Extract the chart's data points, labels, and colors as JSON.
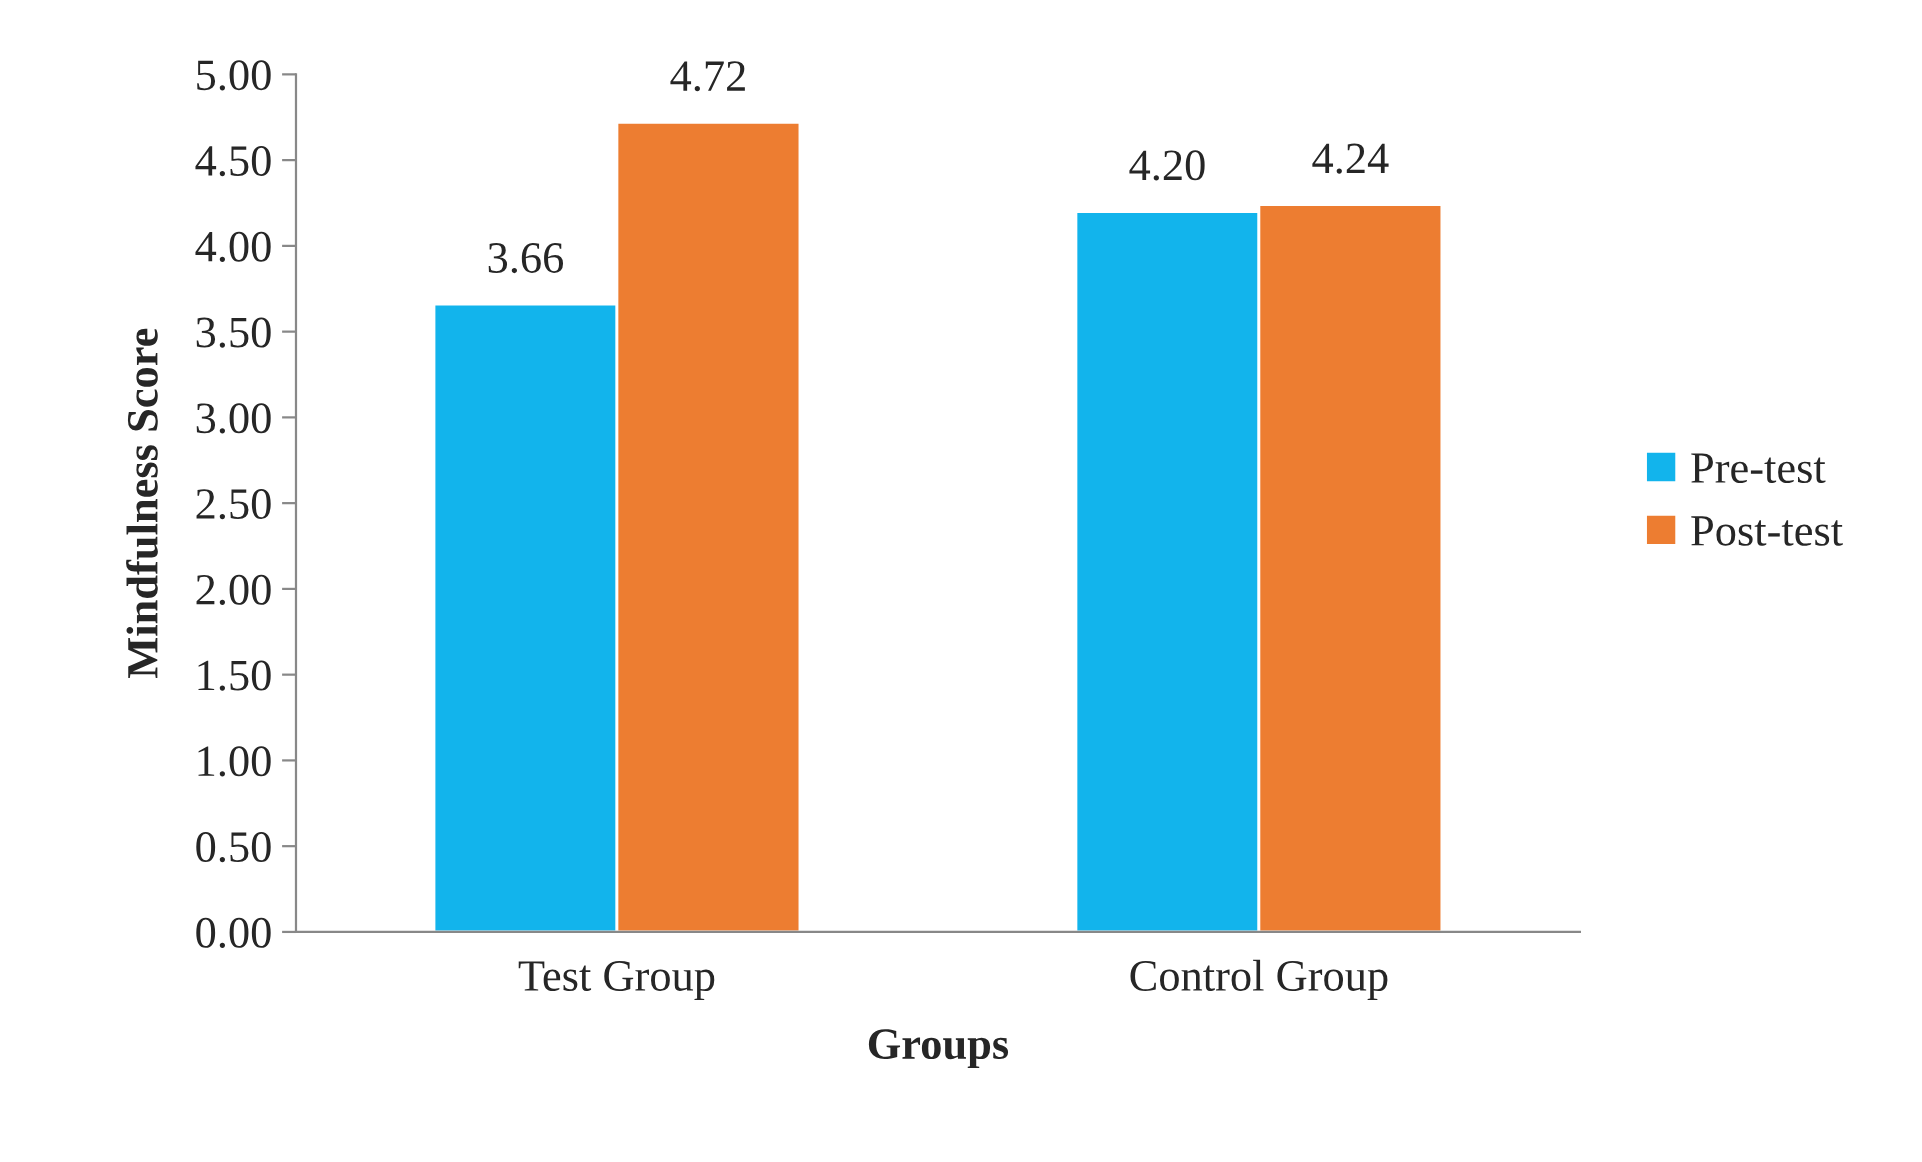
{
  "chart_data": {
    "type": "bar",
    "xlabel": "Groups",
    "ylabel": "Mindfulness Score",
    "categories": [
      "Test Group",
      "Control Group"
    ],
    "series": [
      {
        "name": "Pre-test",
        "color": "#12b4ec",
        "values": [
          3.66,
          4.2
        ],
        "value_labels": [
          "3.66",
          "4.20"
        ]
      },
      {
        "name": "Post-test",
        "color": "#ed7d31",
        "values": [
          4.72,
          4.24
        ],
        "value_labels": [
          "4.72",
          "4.24"
        ]
      }
    ],
    "ylim": [
      0,
      5
    ],
    "yticks": [
      {
        "value": 0,
        "label": "0.00"
      },
      {
        "value": 0.5,
        "label": "0.50"
      },
      {
        "value": 1,
        "label": "1.00"
      },
      {
        "value": 1.5,
        "label": "1.50"
      },
      {
        "value": 2,
        "label": "2.00"
      },
      {
        "value": 2.5,
        "label": "2.50"
      },
      {
        "value": 3,
        "label": "3.00"
      },
      {
        "value": 3.5,
        "label": "3.50"
      },
      {
        "value": 4,
        "label": "4.00"
      },
      {
        "value": 4.5,
        "label": "4.50"
      },
      {
        "value": 5,
        "label": "5.00"
      }
    ],
    "grid": false,
    "legend": "right"
  }
}
